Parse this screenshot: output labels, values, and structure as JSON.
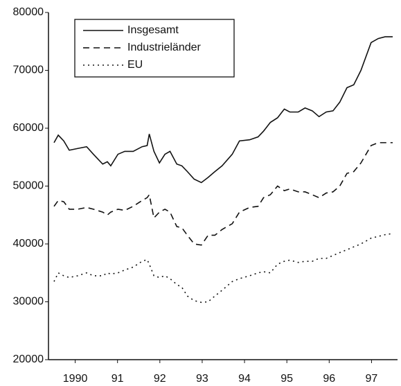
{
  "chart_data": {
    "type": "line",
    "x": [
      1990.0,
      1990.1,
      1990.23,
      1990.36,
      1990.56,
      1990.77,
      1990.93,
      1991.15,
      1991.26,
      1991.34,
      1991.51,
      1991.67,
      1991.87,
      1992.08,
      1992.2,
      1992.25,
      1992.36,
      1992.49,
      1992.62,
      1992.74,
      1992.9,
      1993.02,
      1993.15,
      1993.31,
      1993.48,
      1993.64,
      1993.8,
      1993.97,
      1994.21,
      1994.38,
      1994.62,
      1994.82,
      1994.95,
      1995.11,
      1995.28,
      1995.44,
      1995.57,
      1995.77,
      1995.93,
      1996.1,
      1996.26,
      1996.43,
      1996.59,
      1996.75,
      1996.92,
      1997.08,
      1997.25,
      1997.49,
      1997.66,
      1997.82,
      1998.0
    ],
    "xlim": [
      1990,
      1998
    ],
    "xticks": [
      {
        "value": 1990.5,
        "label": "1990"
      },
      {
        "value": 1991.5,
        "label": "91"
      },
      {
        "value": 1992.5,
        "label": "92"
      },
      {
        "value": 1993.5,
        "label": "93"
      },
      {
        "value": 1994.5,
        "label": "94"
      },
      {
        "value": 1995.5,
        "label": "95"
      },
      {
        "value": 1996.5,
        "label": "96"
      },
      {
        "value": 1997.5,
        "label": "97"
      }
    ],
    "ylim": [
      20000,
      80000
    ],
    "yticks": [
      20000,
      30000,
      40000,
      50000,
      60000,
      70000,
      80000
    ],
    "legend": "upper left",
    "series": [
      {
        "name": "Insgesamt",
        "color": "#111111",
        "dash": "solid",
        "values": [
          57500,
          58800,
          57800,
          56200,
          56500,
          56800,
          55500,
          53800,
          54200,
          53500,
          55500,
          56000,
          56000,
          56800,
          57000,
          59000,
          56000,
          54000,
          55500,
          56000,
          53800,
          53500,
          52500,
          51200,
          50600,
          51500,
          52500,
          53500,
          55500,
          57800,
          58000,
          58500,
          59500,
          61000,
          61800,
          63300,
          62800,
          62800,
          63500,
          63000,
          62000,
          62800,
          63000,
          64500,
          67000,
          67500,
          70000,
          74800,
          75500,
          75800,
          75800
        ]
      },
      {
        "name": "Industrieländer",
        "color": "#111111",
        "dash": "dashed",
        "values": [
          46500,
          47500,
          47300,
          46000,
          46000,
          46300,
          46000,
          45500,
          45000,
          45500,
          46000,
          45800,
          46500,
          47500,
          48000,
          48500,
          44500,
          45500,
          46000,
          45500,
          43000,
          42800,
          41500,
          40000,
          39800,
          41500,
          41500,
          42500,
          43500,
          45500,
          46300,
          46500,
          48000,
          48500,
          50000,
          49200,
          49500,
          49000,
          49000,
          48500,
          48000,
          48800,
          49000,
          50000,
          52200,
          52500,
          54000,
          57000,
          57500,
          57500,
          57500
        ]
      },
      {
        "name": "EU",
        "color": "#111111",
        "dash": "dotted",
        "values": [
          33500,
          35000,
          34500,
          34200,
          34500,
          35000,
          34500,
          34500,
          35000,
          34800,
          35000,
          35500,
          36000,
          37000,
          37300,
          36500,
          34500,
          34200,
          34500,
          34000,
          33000,
          32500,
          31000,
          30200,
          29900,
          30000,
          31000,
          32000,
          33500,
          34000,
          34500,
          35000,
          35200,
          35000,
          36500,
          37000,
          37200,
          36800,
          37000,
          37000,
          37500,
          37500,
          38000,
          38500,
          39000,
          39500,
          40000,
          41000,
          41300,
          41600,
          41800
        ]
      }
    ]
  }
}
